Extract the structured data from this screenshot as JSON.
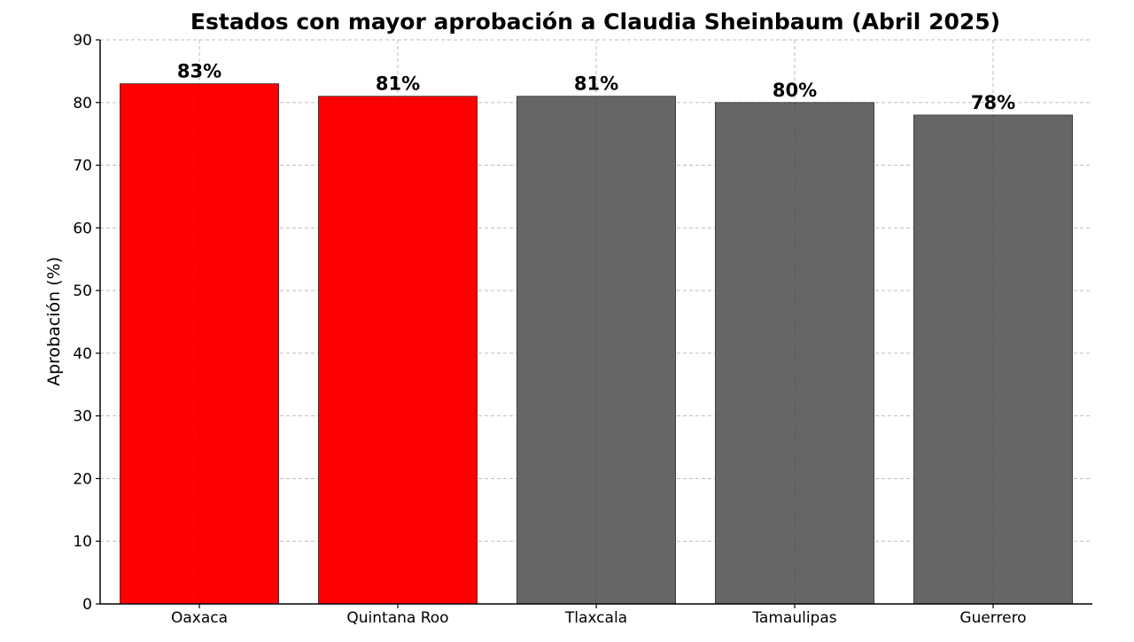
{
  "chart_data": {
    "type": "bar",
    "title": "Estados con mayor aprobación a Claudia Sheinbaum (Abril 2025)",
    "xlabel": "",
    "ylabel": "Aprobación (%)",
    "categories": [
      "Oaxaca",
      "Quintana Roo",
      "Tlaxcala",
      "Tamaulipas",
      "Guerrero"
    ],
    "values": [
      83,
      81,
      81,
      80,
      78
    ],
    "data_labels": [
      "83%",
      "81%",
      "81%",
      "80%",
      "78%"
    ],
    "bar_colors": [
      "#ff0000",
      "#ff0000",
      "#666666",
      "#666666",
      "#666666"
    ],
    "ylim": [
      0,
      90
    ],
    "yticks": [
      0,
      10,
      20,
      30,
      40,
      50,
      60,
      70,
      80,
      90
    ],
    "grid": true,
    "legend": "none"
  }
}
